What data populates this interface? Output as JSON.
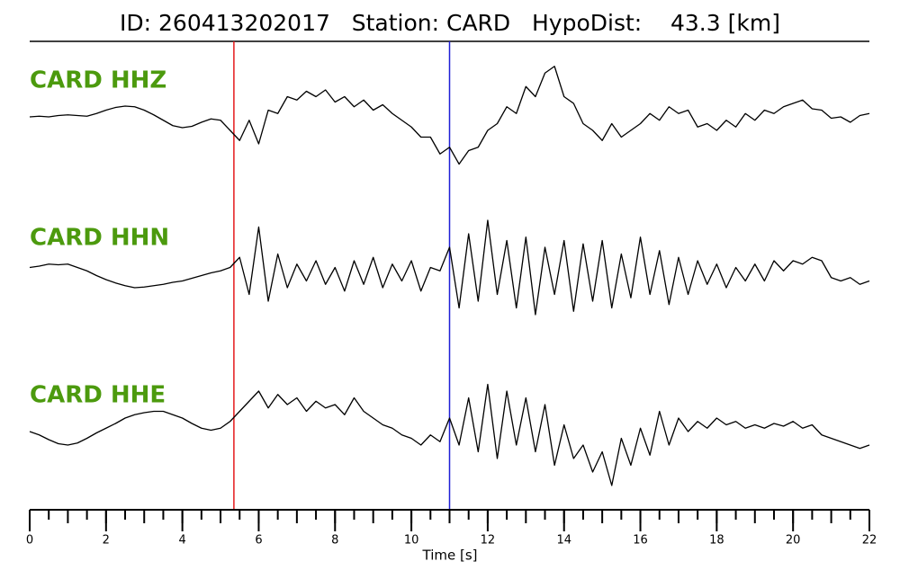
{
  "chart_data": {
    "type": "line",
    "title": "ID: 260413202017   Station: CARD   HypoDist:    43.3 [km]",
    "xlabel": "Time [s]",
    "label_color": "#4c9a0e",
    "xlim": [
      0,
      22
    ],
    "ylim": [
      -1,
      1
    ],
    "xticks": [
      0,
      2,
      4,
      6,
      8,
      10,
      12,
      14,
      16,
      18,
      20,
      22
    ],
    "xminor_ticks": [
      0,
      0.5,
      1,
      1.5,
      2,
      2.5,
      3,
      3.5,
      4,
      4.5,
      5,
      5.5,
      6,
      6.5,
      7,
      7.5,
      8,
      8.5,
      9,
      9.5,
      10,
      10.5,
      11,
      11.5,
      12,
      12.5,
      13,
      13.5,
      14,
      14.5,
      15,
      15.5,
      16,
      16.5,
      17,
      17.5,
      18,
      18.5,
      19,
      19.5,
      20,
      20.5,
      21,
      21.5,
      22
    ],
    "picks": [
      {
        "x": 5.35,
        "color": "#e41a1c"
      },
      {
        "x": 11.0,
        "color": "#1f1fd6"
      }
    ],
    "x": [
      0,
      0.25,
      0.5,
      0.75,
      1,
      1.25,
      1.5,
      1.75,
      2,
      2.25,
      2.5,
      2.75,
      3,
      3.25,
      3.5,
      3.75,
      4,
      4.25,
      4.5,
      4.75,
      5,
      5.25,
      5.5,
      5.75,
      6,
      6.25,
      6.5,
      6.75,
      7,
      7.25,
      7.5,
      7.75,
      8,
      8.25,
      8.5,
      8.75,
      9,
      9.25,
      9.5,
      9.75,
      10,
      10.25,
      10.5,
      10.75,
      11,
      11.25,
      11.5,
      11.75,
      12,
      12.25,
      12.5,
      12.75,
      13,
      13.25,
      13.5,
      13.75,
      14,
      14.25,
      14.5,
      14.75,
      15,
      15.25,
      15.5,
      15.75,
      16,
      16.25,
      16.5,
      16.75,
      17,
      17.25,
      17.5,
      17.75,
      18,
      18.25,
      18.5,
      18.75,
      19,
      19.25,
      19.5,
      19.75,
      20,
      20.25,
      20.5,
      20.75,
      21,
      21.25,
      21.5,
      21.75,
      22
    ],
    "series": [
      {
        "name": "CARD HHZ",
        "color": "#000000",
        "values": [
          0,
          0.01,
          0,
          0.02,
          0.03,
          0.02,
          0.01,
          0.05,
          0.1,
          0.14,
          0.16,
          0.15,
          0.1,
          0.03,
          -0.05,
          -0.13,
          -0.16,
          -0.14,
          -0.08,
          -0.03,
          -0.05,
          -0.2,
          -0.35,
          -0.05,
          -0.4,
          0.1,
          0.05,
          0.3,
          0.25,
          0.38,
          0.3,
          0.4,
          0.22,
          0.3,
          0.15,
          0.25,
          0.1,
          0.18,
          0.05,
          -0.05,
          -0.15,
          -0.3,
          -0.3,
          -0.55,
          -0.45,
          -0.7,
          -0.5,
          -0.45,
          -0.2,
          -0.1,
          0.15,
          0.05,
          0.45,
          0.3,
          0.65,
          0.75,
          0.3,
          0.2,
          -0.1,
          -0.2,
          -0.35,
          -0.1,
          -0.3,
          -0.2,
          -0.1,
          0.05,
          -0.05,
          0.15,
          0.05,
          0.1,
          -0.15,
          -0.1,
          -0.2,
          -0.05,
          -0.15,
          0.05,
          -0.05,
          0.1,
          0.05,
          0.15,
          0.2,
          0.25,
          0.12,
          0.1,
          -0.02,
          0,
          -0.08,
          0.02,
          0.05
        ]
      },
      {
        "name": "CARD HHN",
        "color": "#000000",
        "values": [
          0.1,
          0.12,
          0.15,
          0.14,
          0.15,
          0.1,
          0.05,
          -0.02,
          -0.08,
          -0.13,
          -0.17,
          -0.2,
          -0.19,
          -0.17,
          -0.15,
          -0.12,
          -0.1,
          -0.06,
          -0.02,
          0.02,
          0.05,
          0.1,
          0.25,
          -0.3,
          0.7,
          -0.4,
          0.3,
          -0.2,
          0.15,
          -0.1,
          0.2,
          -0.15,
          0.1,
          -0.25,
          0.2,
          -0.15,
          0.25,
          -0.2,
          0.15,
          -0.1,
          0.2,
          -0.25,
          0.1,
          0.05,
          0.4,
          -0.5,
          0.6,
          -0.4,
          0.8,
          -0.3,
          0.5,
          -0.5,
          0.55,
          -0.6,
          0.4,
          -0.3,
          0.5,
          -0.55,
          0.45,
          -0.4,
          0.5,
          -0.5,
          0.3,
          -0.35,
          0.55,
          -0.3,
          0.35,
          -0.45,
          0.25,
          -0.3,
          0.2,
          -0.15,
          0.15,
          -0.2,
          0.1,
          -0.1,
          0.15,
          -0.1,
          0.2,
          0.05,
          0.2,
          0.15,
          0.25,
          0.2,
          -0.05,
          -0.1,
          -0.05,
          -0.15,
          -0.1
        ]
      },
      {
        "name": "CARD HHE",
        "color": "#000000",
        "values": [
          0,
          -0.05,
          -0.12,
          -0.18,
          -0.2,
          -0.17,
          -0.1,
          -0.02,
          0.05,
          0.12,
          0.2,
          0.25,
          0.28,
          0.3,
          0.3,
          0.25,
          0.2,
          0.12,
          0.05,
          0.02,
          0.05,
          0.15,
          0.3,
          0.45,
          0.6,
          0.35,
          0.55,
          0.4,
          0.5,
          0.3,
          0.45,
          0.35,
          0.4,
          0.25,
          0.5,
          0.3,
          0.2,
          0.1,
          0.05,
          -0.05,
          -0.1,
          -0.2,
          -0.05,
          -0.15,
          0.2,
          -0.2,
          0.5,
          -0.3,
          0.7,
          -0.4,
          0.6,
          -0.2,
          0.5,
          -0.3,
          0.4,
          -0.5,
          0.1,
          -0.4,
          -0.2,
          -0.6,
          -0.3,
          -0.8,
          -0.1,
          -0.5,
          0.05,
          -0.35,
          0.3,
          -0.2,
          0.2,
          0,
          0.15,
          0.05,
          0.2,
          0.1,
          0.15,
          0.05,
          0.1,
          0.05,
          0.12,
          0.08,
          0.15,
          0.05,
          0.1,
          -0.05,
          -0.1,
          -0.15,
          -0.2,
          -0.25,
          -0.2
        ]
      }
    ]
  }
}
